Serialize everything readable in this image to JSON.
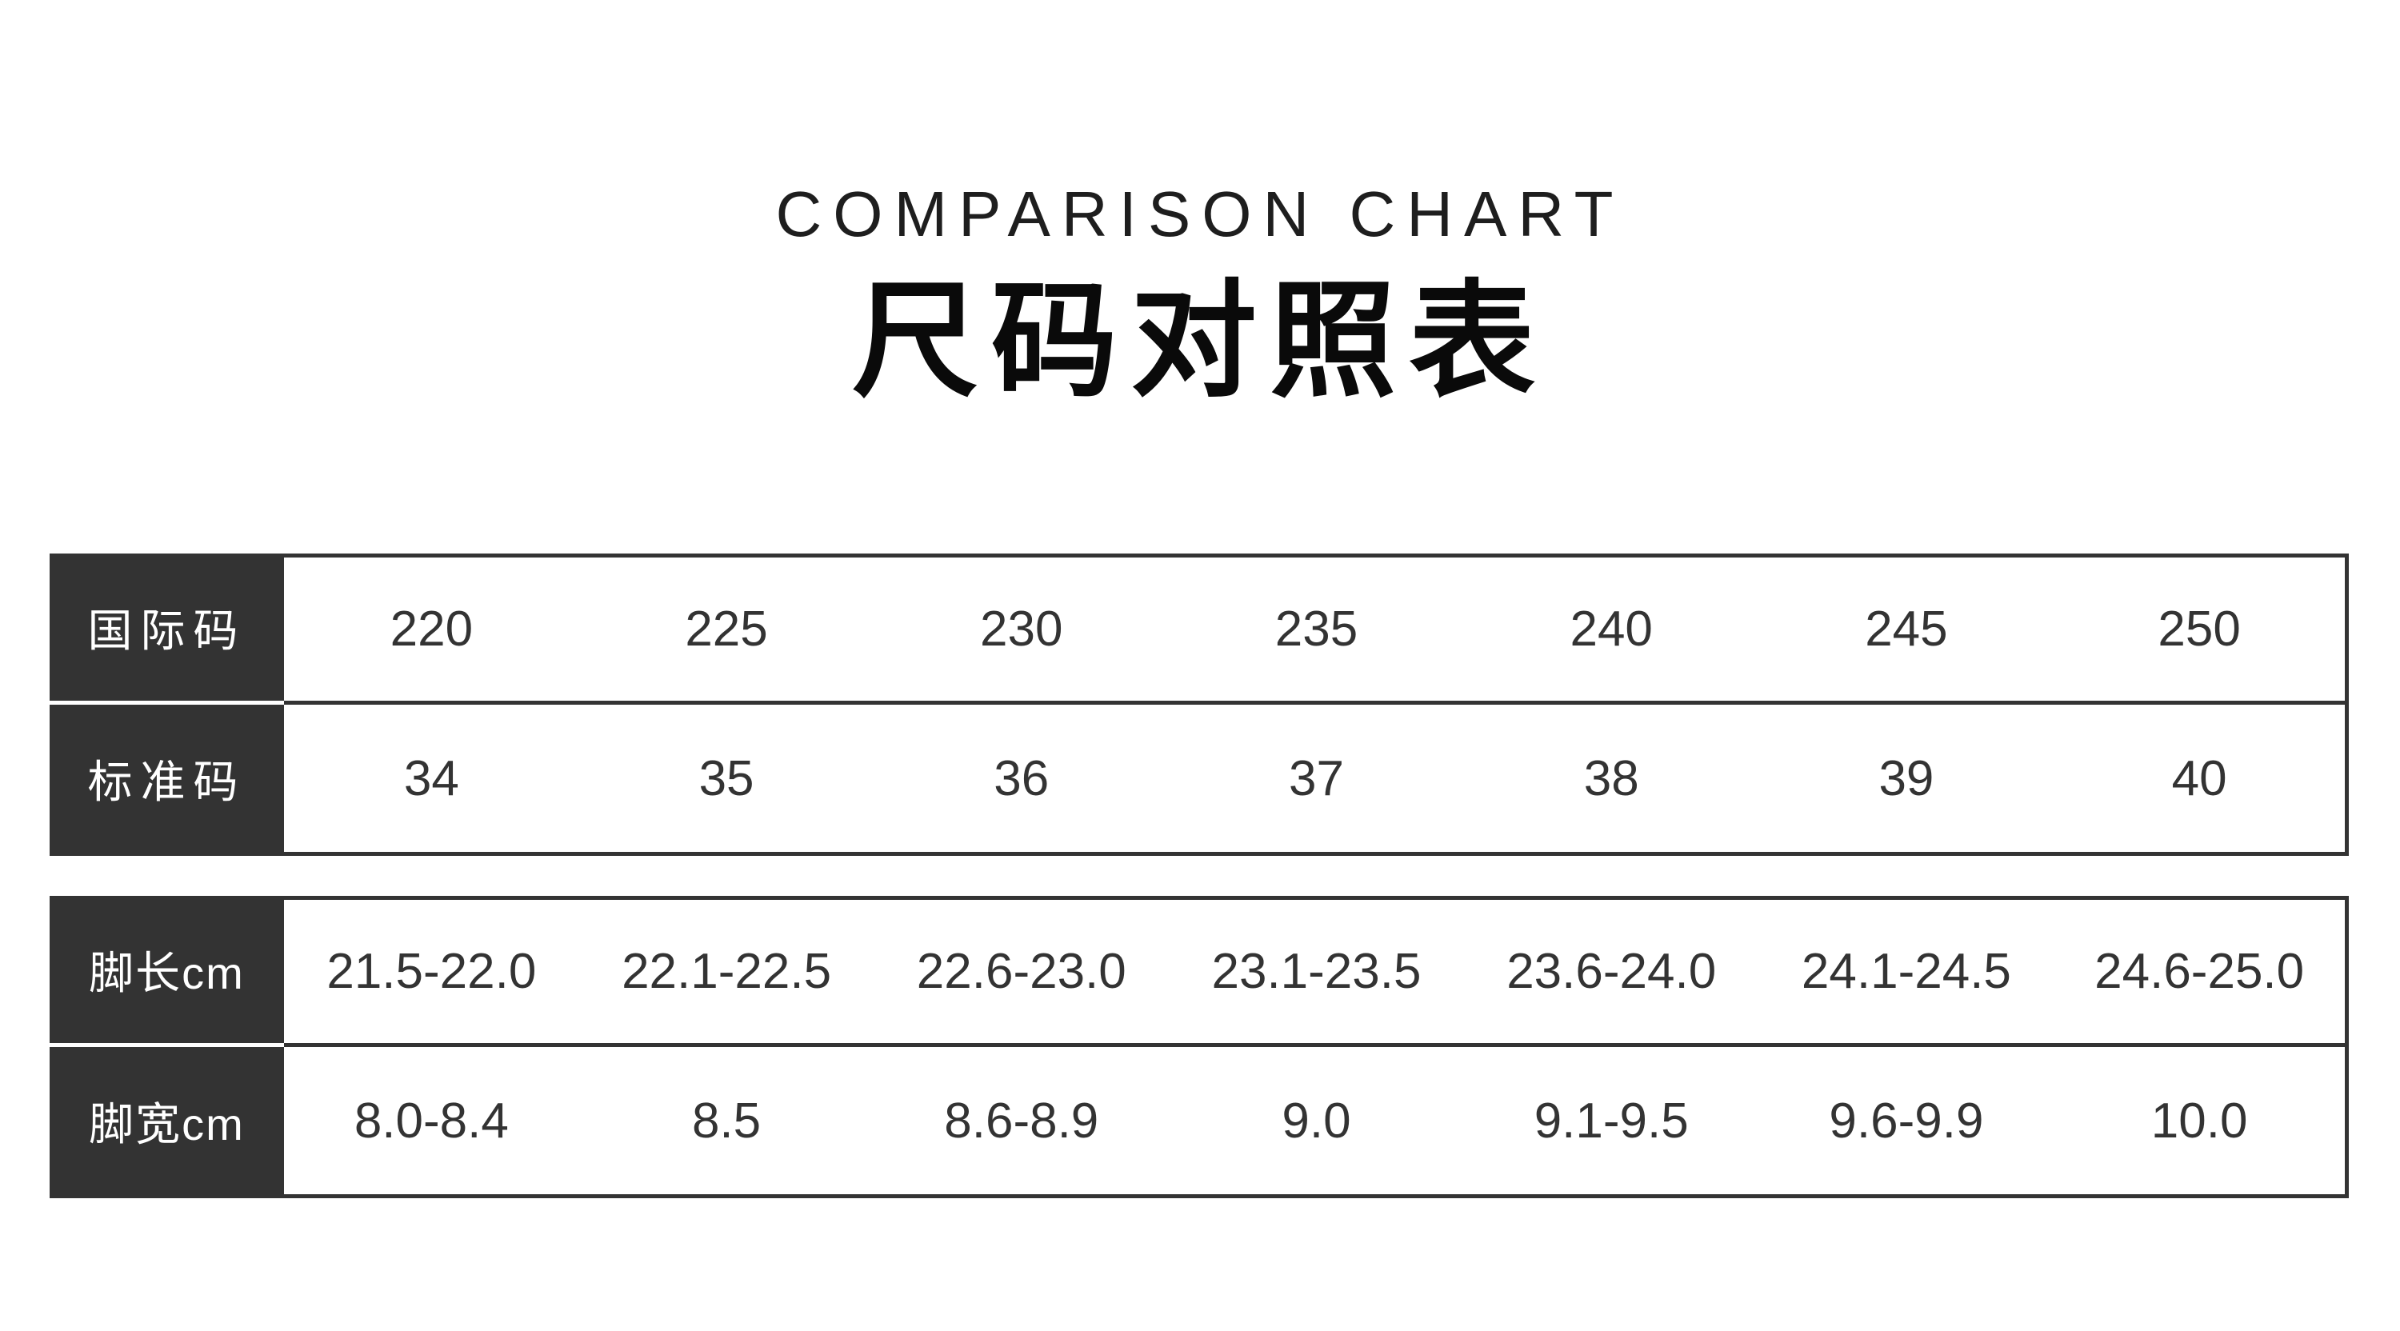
{
  "page": {
    "title_en": "COMPARISON CHART",
    "title_cn": "尺码对照表"
  },
  "colors": {
    "header_bg": "#333333",
    "header_text": "#ffffff",
    "body_text": "#333333",
    "border": "#333333",
    "background": "#ffffff"
  },
  "tables": [
    {
      "rows": [
        {
          "label": "国际码",
          "values": [
            "220",
            "225",
            "230",
            "235",
            "240",
            "245",
            "250"
          ]
        },
        {
          "label": "标准码",
          "values": [
            "34",
            "35",
            "36",
            "37",
            "38",
            "39",
            "40"
          ]
        }
      ]
    },
    {
      "rows": [
        {
          "label": "脚长cm",
          "values": [
            "21.5-22.0",
            "22.1-22.5",
            "22.6-23.0",
            "23.1-23.5",
            "23.6-24.0",
            "24.1-24.5",
            "24.6-25.0"
          ]
        },
        {
          "label": "脚宽cm",
          "values": [
            "8.0-8.4",
            "8.5",
            "8.6-8.9",
            "9.0",
            "9.1-9.5",
            "9.6-9.9",
            "10.0"
          ]
        }
      ]
    }
  ],
  "chart_data": {
    "type": "table",
    "title": "尺码对照表",
    "subtitle": "COMPARISON CHART",
    "rows": [
      {
        "header": "国际码",
        "values": [
          "220",
          "225",
          "230",
          "235",
          "240",
          "245",
          "250"
        ]
      },
      {
        "header": "标准码",
        "values": [
          "34",
          "35",
          "36",
          "37",
          "38",
          "39",
          "40"
        ]
      },
      {
        "header": "脚长cm",
        "values": [
          "21.5-22.0",
          "22.1-22.5",
          "22.6-23.0",
          "23.1-23.5",
          "23.6-24.0",
          "24.1-24.5",
          "24.6-25.0"
        ]
      },
      {
        "header": "脚宽cm",
        "values": [
          "8.0-8.4",
          "8.5",
          "8.6-8.9",
          "9.0",
          "9.1-9.5",
          "9.6-9.9",
          "10.0"
        ]
      }
    ]
  }
}
